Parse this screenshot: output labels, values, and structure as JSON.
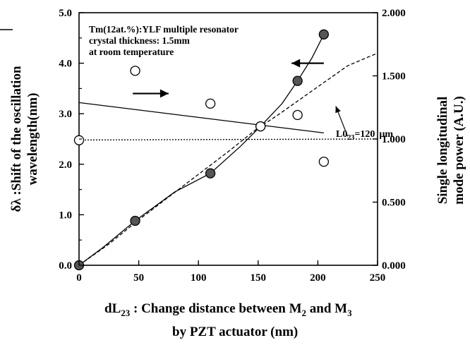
{
  "chart_data": {
    "type": "scatter",
    "annotation_lines": [
      "Tm(12at.%):YLF multiple resonator",
      "crystal thickness: 1.5mm",
      "at room temperature"
    ],
    "cavity_label": "L0",
    "cavity_label_sub": "23",
    "cavity_label_value": "=120",
    "cavity_label_unit": "µm",
    "xlabel_main": "dL",
    "xlabel_sub": "23",
    "xlabel_mid": " : Change distance between M",
    "xlabel_sub2": "2",
    "xlabel_and": "  and M",
    "xlabel_sub3": "3",
    "xlabel_line2": "by PZT actuator  (nm)",
    "ylabel_left_line1": "δλ :Shift of the oscillation",
    "ylabel_left_line2": "wavelength(nm)",
    "ylabel_right_line1": "Single longitudinal",
    "ylabel_right_line2": "mode power (A.U.)",
    "x_ticks": [
      "0",
      "50",
      "100",
      "150",
      "200",
      "250"
    ],
    "y_left_ticks": [
      "0.0",
      "1.0",
      "2.0",
      "3.0",
      "4.0",
      "5.0"
    ],
    "y_right_ticks": [
      "0.000",
      "0.500",
      "1.000",
      "1.500",
      "2.000"
    ],
    "xlim": [
      0,
      250
    ],
    "ylim_left": [
      0,
      5
    ],
    "ylim_right": [
      0,
      2
    ],
    "series": [
      {
        "axis": "left",
        "marker": "filled-circle",
        "x": [
          0,
          47,
          110,
          152,
          183,
          205
        ],
        "y": [
          0.0,
          0.88,
          1.82,
          2.75,
          3.65,
          4.57
        ]
      },
      {
        "axis": "right",
        "marker": "open-circle",
        "x": [
          0,
          47,
          110,
          152,
          183,
          205
        ],
        "y": [
          0.99,
          1.54,
          1.28,
          1.1,
          1.19,
          0.82
        ]
      }
    ],
    "curves": [
      {
        "axis": "left",
        "style": "solid",
        "x": [
          0,
          20,
          47,
          80,
          110,
          135,
          152,
          170,
          183,
          195,
          205
        ],
        "y": [
          0.0,
          0.35,
          0.88,
          1.45,
          1.82,
          2.35,
          2.75,
          3.2,
          3.65,
          4.1,
          4.57
        ]
      },
      {
        "axis": "left",
        "style": "solid",
        "x": [
          0,
          205
        ],
        "y": [
          3.22,
          2.62
        ]
      },
      {
        "axis": "left",
        "style": "dotted",
        "x": [
          0,
          250
        ],
        "y": [
          2.48,
          2.5
        ]
      },
      {
        "axis": "left",
        "style": "dashed",
        "x": [
          0,
          25,
          50,
          75,
          100,
          125,
          150,
          165,
          180,
          195,
          210,
          225,
          240,
          250
        ],
        "y": [
          0.0,
          0.42,
          0.9,
          1.35,
          1.8,
          2.25,
          2.72,
          2.95,
          3.2,
          3.45,
          3.7,
          3.95,
          4.1,
          4.2
        ]
      }
    ],
    "arrows": [
      {
        "direction": "left",
        "x": [
          205,
          178
        ],
        "y": [
          4.0,
          4.0
        ]
      },
      {
        "direction": "right",
        "x": [
          45,
          75
        ],
        "y": [
          3.4,
          3.4
        ]
      },
      {
        "direction": "up-left",
        "x": [
          225,
          215
        ],
        "y": [
          2.55,
          3.15
        ]
      }
    ]
  }
}
